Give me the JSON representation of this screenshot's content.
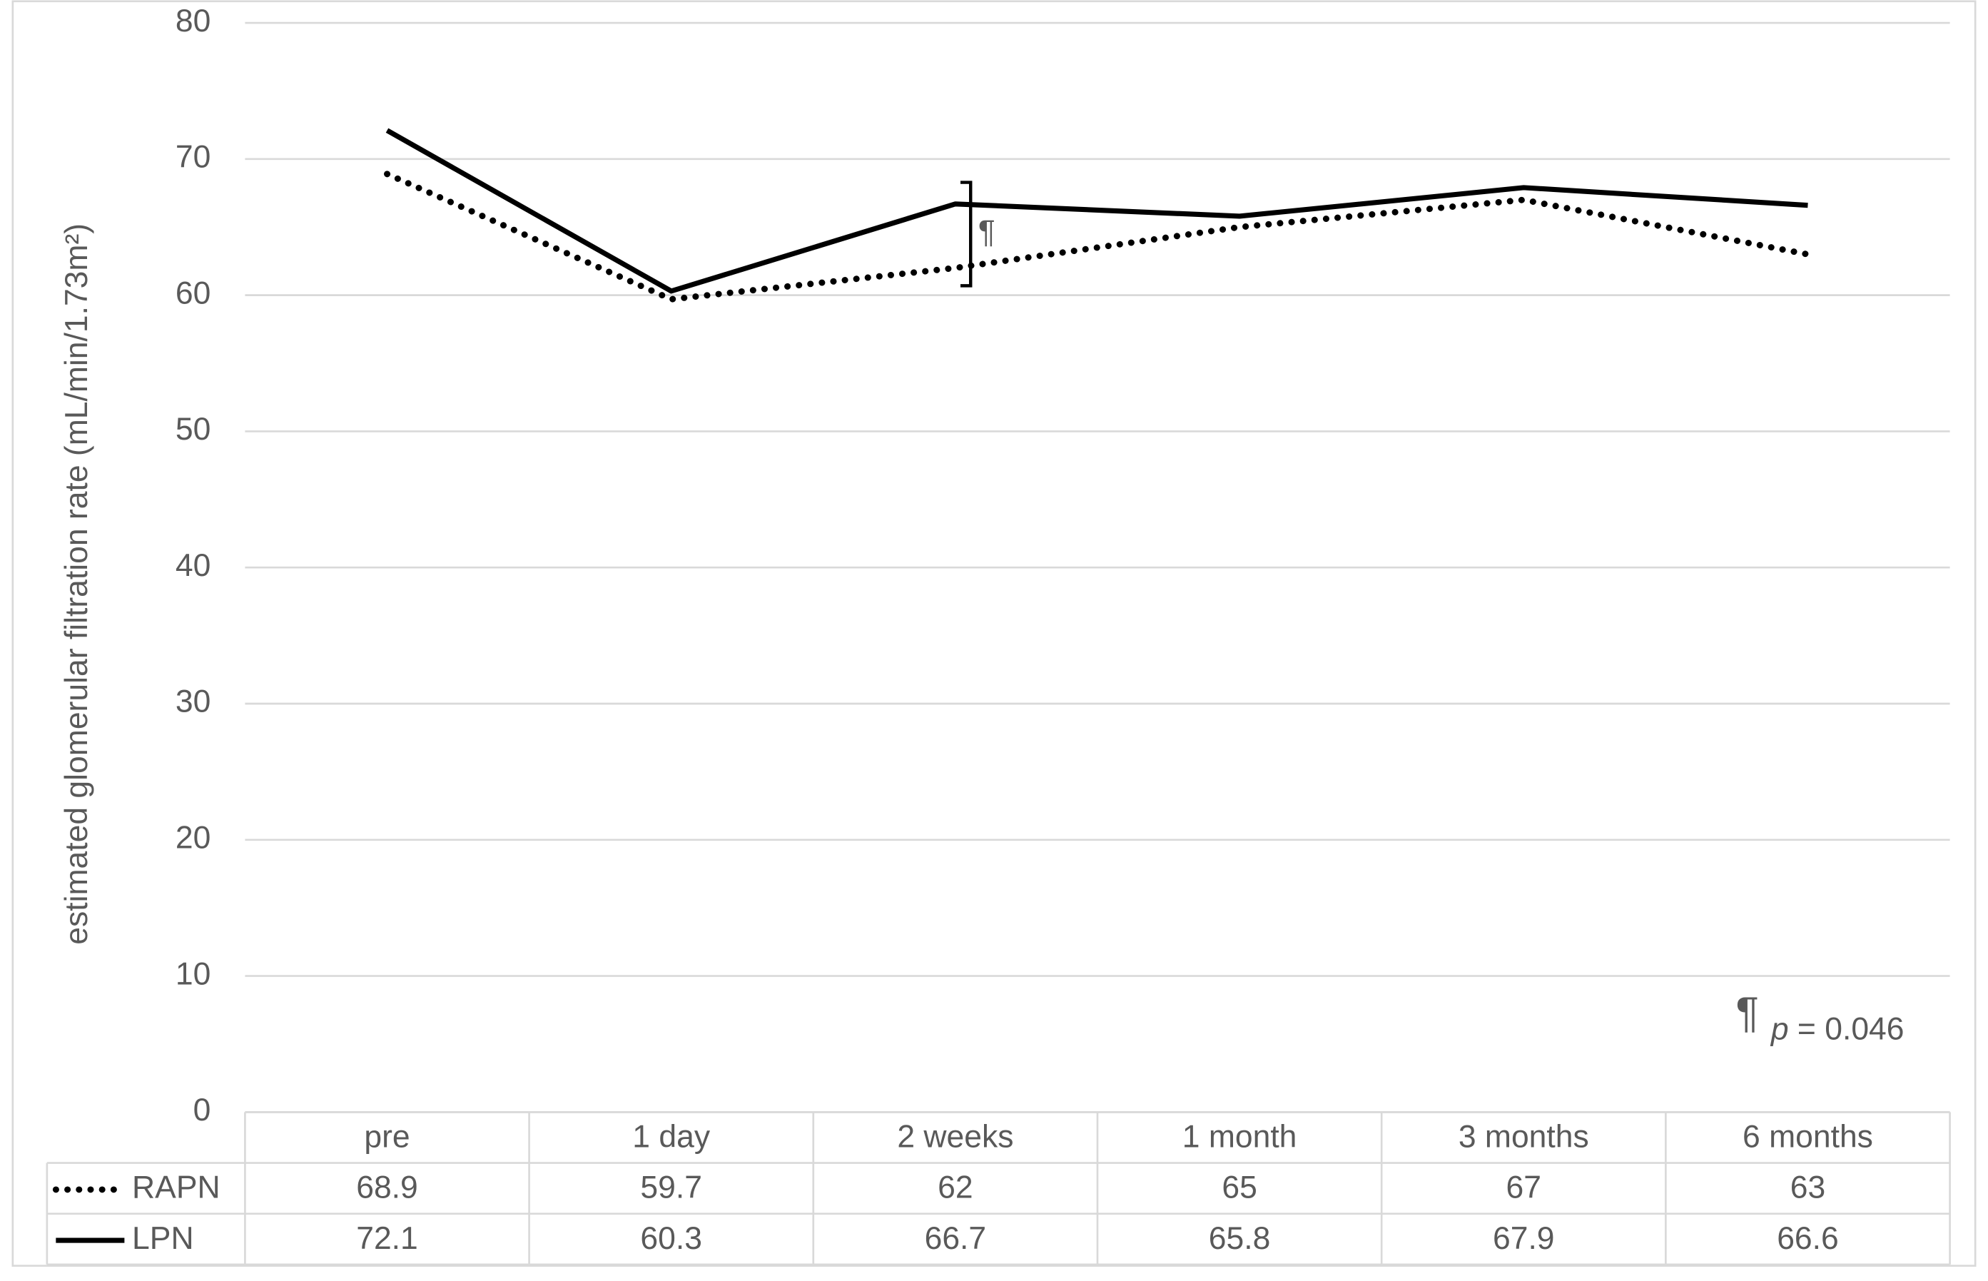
{
  "chart_data": {
    "type": "line",
    "y_label": "estimated glomerular filtration rate (mL/min/1.73m²)",
    "categories": [
      "pre",
      "1 day",
      "2 weeks",
      "1 month",
      "3 months",
      "6 months"
    ],
    "series": [
      {
        "name": "RAPN",
        "color": "#000000",
        "style": "dotted",
        "values": [
          68.9,
          59.7,
          62,
          65,
          67,
          63
        ]
      },
      {
        "name": "LPN",
        "color": "#000000",
        "style": "solid",
        "values": [
          72.1,
          60.3,
          66.7,
          65.8,
          67.9,
          66.6
        ]
      }
    ],
    "ylim": [
      0,
      80
    ],
    "yticks": [
      0,
      10,
      20,
      30,
      40,
      50,
      60,
      70,
      80
    ],
    "grid": true,
    "significance_marker": {
      "category_index": 2,
      "symbol": "¶"
    },
    "significance_note": "¶ p = 0.046"
  }
}
